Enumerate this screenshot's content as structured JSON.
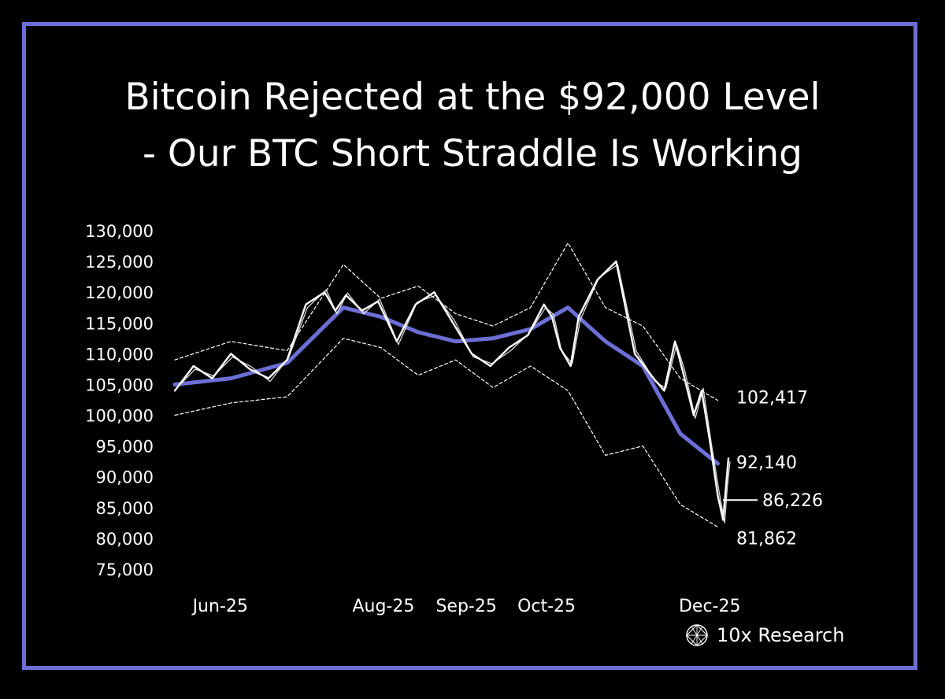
{
  "title_line1": "Bitcoin Rejected at the $92,000 Level",
  "title_line2": "- Our BTC Short Straddle Is Working",
  "brand": {
    "name": "10x Research",
    "icon": "globe-lattice-icon"
  },
  "colors": {
    "background": "#000000",
    "frame": "#6d6fd6",
    "ma": "#6d6fd6",
    "price": "#ffffff",
    "band": "#ffffff"
  },
  "chart_data": {
    "type": "line",
    "title": "",
    "xlabel": "",
    "ylabel": "",
    "ylim": [
      75000,
      130000
    ],
    "y_ticks": [
      "130,000",
      "125,000",
      "120,000",
      "115,000",
      "110,000",
      "105,000",
      "100,000",
      "95,000",
      "90,000",
      "85,000",
      "80,000",
      "75,000"
    ],
    "y_tick_values": [
      130000,
      125000,
      120000,
      115000,
      110000,
      105000,
      100000,
      95000,
      90000,
      85000,
      80000,
      75000
    ],
    "x_ticks": [
      "Jun-25",
      "Aug-25",
      "Sep-25",
      "Oct-25",
      "Dec-25"
    ],
    "x_tick_dates": [
      "2025-06-01",
      "2025-08-01",
      "2025-09-01",
      "2025-10-01",
      "2025-12-01"
    ],
    "x_range": [
      "2025-05-15",
      "2025-12-08"
    ],
    "grid": false,
    "legend": "none",
    "series": [
      {
        "style": "price-white",
        "x": [
          "2025-05-15",
          "2025-05-22",
          "2025-05-29",
          "2025-06-05",
          "2025-06-12",
          "2025-06-19",
          "2025-06-26",
          "2025-07-03",
          "2025-07-10",
          "2025-07-14",
          "2025-07-18",
          "2025-07-24",
          "2025-07-30",
          "2025-08-06",
          "2025-08-13",
          "2025-08-20",
          "2025-08-27",
          "2025-09-03",
          "2025-09-10",
          "2025-09-17",
          "2025-09-24",
          "2025-09-30",
          "2025-10-03",
          "2025-10-06",
          "2025-10-10",
          "2025-10-13",
          "2025-10-20",
          "2025-10-27",
          "2025-11-03",
          "2025-11-10",
          "2025-11-14",
          "2025-11-18",
          "2025-11-21",
          "2025-11-25",
          "2025-11-28",
          "2025-12-01",
          "2025-12-04",
          "2025-12-06",
          "2025-12-07",
          "2025-12-08"
        ],
        "values": [
          104000,
          108000,
          106000,
          110000,
          107500,
          106000,
          109000,
          118000,
          120000,
          117000,
          119500,
          117000,
          118500,
          112000,
          118000,
          120000,
          115000,
          110000,
          108000,
          111000,
          113000,
          118000,
          116000,
          111000,
          108000,
          116000,
          122000,
          125000,
          110000,
          106000,
          104000,
          112000,
          107000,
          100000,
          104000,
          96000,
          87000,
          83000,
          88000,
          93000
        ]
      },
      {
        "style": "band-upper-dashed",
        "x": [
          "2025-05-15",
          "2025-06-05",
          "2025-06-26",
          "2025-07-17",
          "2025-07-31",
          "2025-08-14",
          "2025-08-28",
          "2025-09-11",
          "2025-09-25",
          "2025-10-09",
          "2025-10-23",
          "2025-11-06",
          "2025-11-20",
          "2025-12-04"
        ],
        "values": [
          109000,
          112000,
          110500,
          124500,
          119000,
          121000,
          116500,
          114500,
          117500,
          128000,
          117500,
          114500,
          106000,
          102417
        ]
      },
      {
        "style": "band-lower-dashed",
        "x": [
          "2025-05-15",
          "2025-06-05",
          "2025-06-26",
          "2025-07-17",
          "2025-07-31",
          "2025-08-14",
          "2025-08-28",
          "2025-09-11",
          "2025-09-25",
          "2025-10-09",
          "2025-10-23",
          "2025-11-06",
          "2025-11-20",
          "2025-12-04"
        ],
        "values": [
          100000,
          102000,
          103000,
          112500,
          111000,
          106500,
          109000,
          104500,
          108000,
          104000,
          93500,
          95000,
          85500,
          81862
        ]
      },
      {
        "style": "ma-blue",
        "x": [
          "2025-05-15",
          "2025-06-05",
          "2025-06-26",
          "2025-07-17",
          "2025-07-31",
          "2025-08-14",
          "2025-08-28",
          "2025-09-11",
          "2025-09-25",
          "2025-10-09",
          "2025-10-23",
          "2025-11-06",
          "2025-11-20",
          "2025-12-04"
        ],
        "values": [
          105000,
          106000,
          108500,
          117500,
          116000,
          113500,
          112000,
          112500,
          114000,
          117500,
          112000,
          108000,
          97000,
          92140
        ]
      }
    ],
    "end_labels": [
      {
        "value": 102417,
        "label": "102,417"
      },
      {
        "value": 92140,
        "label": "92,140"
      },
      {
        "value": 86226,
        "label": "86,226"
      },
      {
        "value": 81862,
        "label": "81,862"
      }
    ]
  }
}
